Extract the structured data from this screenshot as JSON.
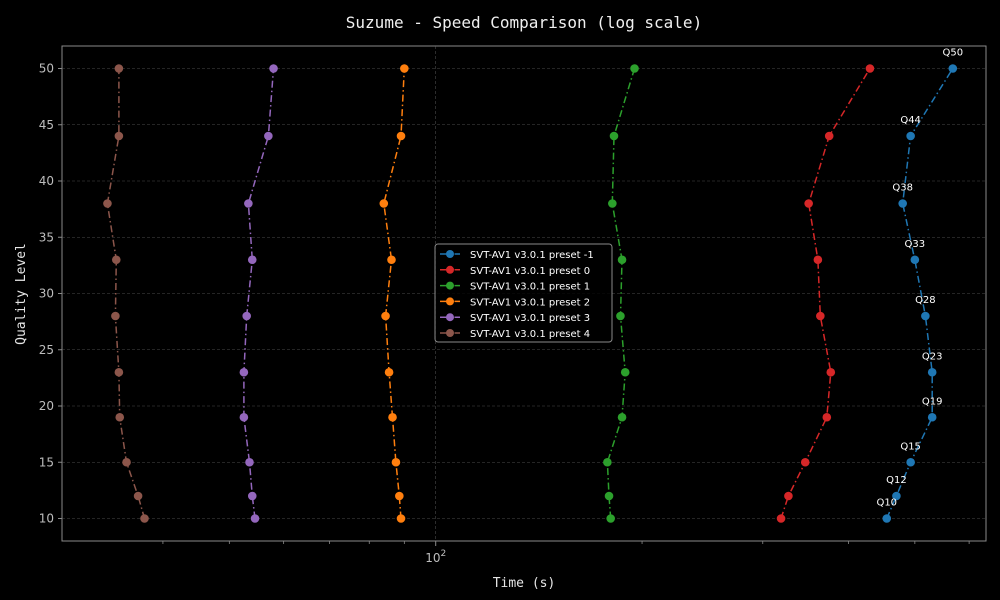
{
  "chart_data": {
    "type": "line",
    "title": "Suzume - Speed Comparison (log scale)",
    "xlabel": "Time (s)",
    "ylabel": "Quality Level",
    "xscale": "log",
    "xlim": [
      28.5,
      635
    ],
    "ylim": [
      8,
      52
    ],
    "xticks_major": [
      {
        "value": 100,
        "label": "10",
        "exp": "2"
      }
    ],
    "xticks_minor": [
      40,
      50,
      60,
      70,
      80,
      90,
      200,
      300,
      400,
      500,
      600
    ],
    "yticks": [
      10,
      15,
      20,
      25,
      30,
      35,
      40,
      45,
      50
    ],
    "grid": true,
    "legend_position": "center",
    "y": [
      10,
      12,
      15,
      19,
      23,
      28,
      33,
      38,
      44,
      50
    ],
    "series": [
      {
        "name": "SVT-AV1 v3.0.1 preset -1",
        "color": "#1f77b4",
        "x": [
          455,
          470,
          493,
          530,
          530,
          518,
          500,
          480,
          493,
          568
        ]
      },
      {
        "name": "SVT-AV1 v3.0.1 preset 0",
        "color": "#d62728",
        "x": [
          319,
          327,
          346,
          372,
          377,
          364,
          361,
          350,
          375,
          430
        ]
      },
      {
        "name": "SVT-AV1 v3.0.1 preset 1",
        "color": "#2ca02c",
        "x": [
          180,
          179,
          178,
          187,
          189,
          186,
          187,
          181,
          182,
          195
        ]
      },
      {
        "name": "SVT-AV1 v3.0.1 preset 2",
        "color": "#ff7f0e",
        "x": [
          89,
          88.5,
          87.5,
          86.5,
          85.5,
          84.5,
          86.2,
          84.0,
          89.0,
          90.0
        ]
      },
      {
        "name": "SVT-AV1 v3.0.1 preset 3",
        "color": "#9467bd",
        "x": [
          54.5,
          54.0,
          53.5,
          52.5,
          52.5,
          53.0,
          54.0,
          53.3,
          57.0,
          58.0
        ]
      },
      {
        "name": "SVT-AV1 v3.0.1 preset 4",
        "color": "#8c564b",
        "x": [
          37.6,
          36.8,
          35.4,
          34.6,
          34.5,
          34.1,
          34.2,
          33.2,
          34.5,
          34.5
        ]
      }
    ],
    "annotations": [
      "Q10",
      "Q12",
      "Q15",
      "Q19",
      "Q23",
      "Q28",
      "Q33",
      "Q38",
      "Q44",
      "Q50"
    ],
    "annotation_series": 0
  }
}
